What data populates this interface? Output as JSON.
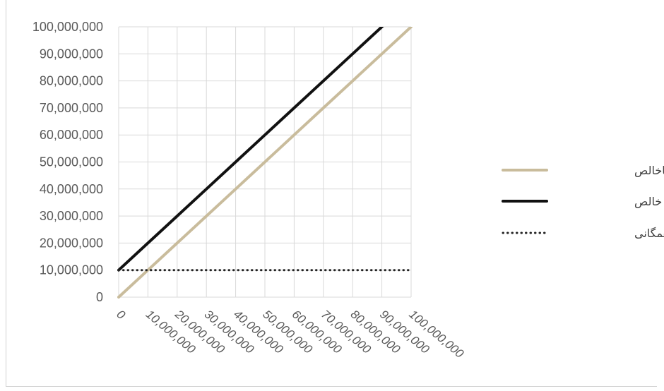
{
  "chart_data": {
    "type": "line",
    "title": "",
    "xlabel": "",
    "ylabel": "",
    "x": [
      0,
      10000000,
      20000000,
      30000000,
      40000000,
      50000000,
      60000000,
      70000000,
      80000000,
      90000000,
      100000000
    ],
    "x_tick_labels": [
      "0",
      "10,000,000",
      "20,000,000",
      "30,000,000",
      "40,000,000",
      "50,000,000",
      "60,000,000",
      "70,000,000",
      "80,000,000",
      "90,000,000",
      "100,000,000"
    ],
    "y_tick_labels": [
      "0",
      "10,000,000",
      "20,000,000",
      "30,000,000",
      "40,000,000",
      "50,000,000",
      "60,000,000",
      "70,000,000",
      "80,000,000",
      "90,000,000",
      "100,000,000"
    ],
    "xlim": [
      0,
      100000000
    ],
    "ylim": [
      0,
      100000000
    ],
    "grid": true,
    "legend_position": "right",
    "series": [
      {
        "name": "درآمد ناخالص",
        "color": "#c9bc9c",
        "style": "solid",
        "values": [
          0,
          10000000,
          20000000,
          30000000,
          40000000,
          50000000,
          60000000,
          70000000,
          80000000,
          90000000,
          100000000
        ]
      },
      {
        "name": "درآمد خالص",
        "color": "#111111",
        "style": "solid",
        "values": [
          10000000,
          20000000,
          30000000,
          40000000,
          50000000,
          60000000,
          70000000,
          80000000,
          90000000,
          100000000,
          110000000
        ]
      },
      {
        "name": "د پایه همگانی",
        "color": "#222222",
        "style": "dotted",
        "values": [
          10000000,
          10000000,
          10000000,
          10000000,
          10000000,
          10000000,
          10000000,
          10000000,
          10000000,
          10000000,
          10000000
        ]
      }
    ]
  }
}
